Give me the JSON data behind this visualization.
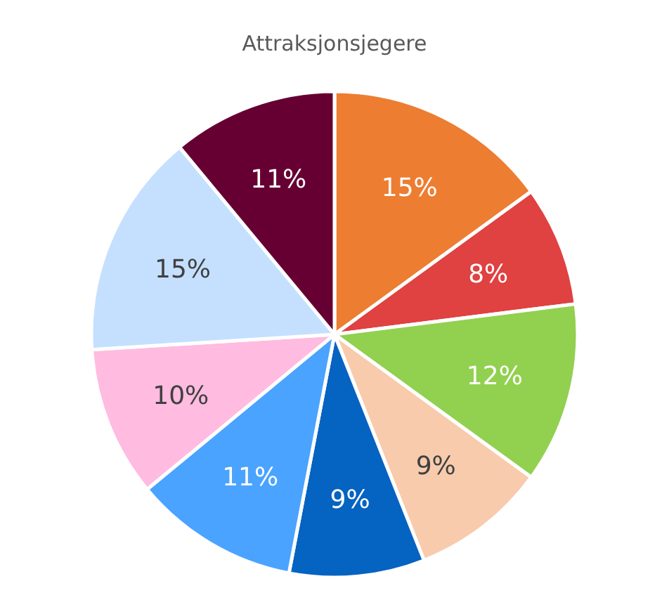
{
  "chart_data": {
    "type": "pie",
    "title": "Attraksjonsjegere",
    "categories": [
      null,
      null,
      null,
      null,
      null,
      null,
      null,
      null,
      null
    ],
    "values": [
      15,
      8,
      12,
      9,
      9,
      11,
      10,
      15,
      11
    ],
    "colors": [
      "#ed7d31",
      "#e04141",
      "#92d050",
      "#f8cbad",
      "#0563c1",
      "#4aa3ff",
      "#ffbbe0",
      "#c5e0ff",
      "#660033"
    ],
    "value_labels": [
      "15%",
      "8%",
      "12%",
      "9%",
      "9%",
      "11%",
      "10%",
      "15%",
      "11%"
    ]
  }
}
